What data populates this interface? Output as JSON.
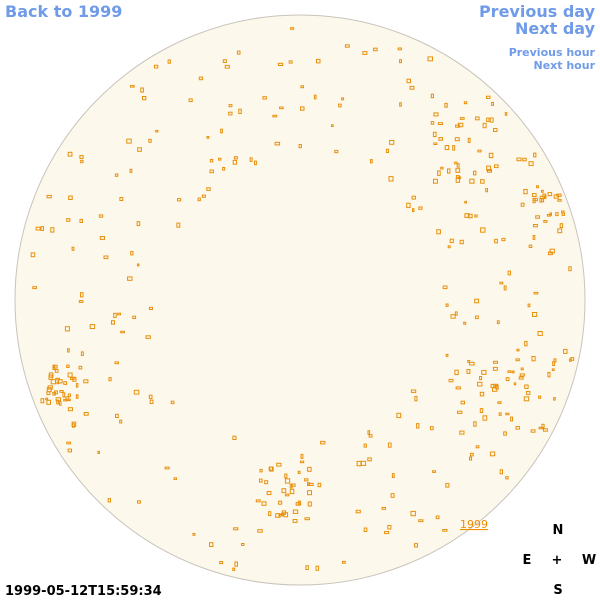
{
  "nav": {
    "back": "Back to 1999",
    "previous_day": "Previous day",
    "next_day": "Next day",
    "previous_hour": "Previous hour",
    "next_hour": "Next hour"
  },
  "timestamp": "1999-05-12T15:59:34",
  "compass": {
    "north": "N",
    "east": "E",
    "center": "+",
    "west": "W",
    "south": "S"
  },
  "disk_label": "1999"
}
